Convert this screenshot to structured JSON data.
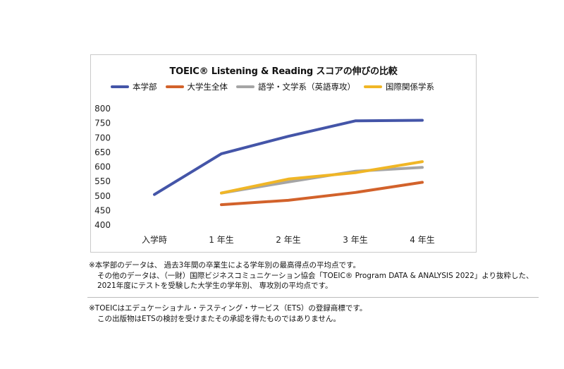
{
  "chart_data": {
    "type": "line",
    "title": "TOEIC® Listening & Reading スコアの伸びの比較",
    "categories": [
      "入学時",
      "1 年生",
      "2 年生",
      "3 年生",
      "4 年生"
    ],
    "ylim": [
      400,
      800
    ],
    "yticks": [
      "800",
      "750",
      "700",
      "650",
      "600",
      "550",
      "500",
      "450",
      "400"
    ],
    "grid": false,
    "legend_position": "top",
    "series": [
      {
        "name": "本学部",
        "color": "#4455a8",
        "values": [
          505,
          645,
          705,
          758,
          760
        ]
      },
      {
        "name": "大学生全体",
        "color": "#d2622b",
        "values": [
          null,
          470,
          485,
          512,
          547
        ]
      },
      {
        "name": "語学・文学系（英語専攻）",
        "color": "#a5a5a5",
        "values": [
          null,
          510,
          548,
          585,
          598
        ]
      },
      {
        "name": "国際関係学系",
        "color": "#f0b626",
        "values": [
          null,
          510,
          558,
          580,
          618
        ]
      }
    ]
  },
  "notes": {
    "line1": "※本学部のデータは、 過去3年間の卒業生による学年別の最高得点の平均点です。",
    "line2": "その他のデータは、（一財）国際ビジネスコミュニケーション協会「TOEIC® Program DATA & ANALYSIS 2022」より抜粋した、",
    "line3": "2021年度にテストを受験した大学生の学年別、 専攻別の平均点です。",
    "line4": "※TOEICはエデュケーショナル・テスティング・サービス（ETS）の登録商標です。",
    "line5": "この出版物はETSの検討を受けまたその承認を得たものではありません。"
  }
}
